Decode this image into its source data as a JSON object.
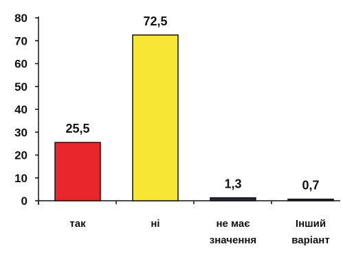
{
  "chart_data": {
    "type": "bar",
    "categories": [
      [
        "так"
      ],
      [
        "ні"
      ],
      [
        "не має",
        "значення"
      ],
      [
        "Інший",
        "варіант"
      ]
    ],
    "values": [
      25.5,
      72.5,
      1.3,
      0.7
    ],
    "value_labels": [
      "25,5",
      "72,5",
      "1,3",
      "0,7"
    ],
    "ylim": [
      0,
      80
    ],
    "yticks": [
      0,
      10,
      20,
      30,
      40,
      50,
      60,
      70,
      80
    ],
    "grid": false,
    "colors": {
      "bars": [
        "#e8262b",
        "#f7e634",
        "#2a2a3a",
        "#2a2a3a"
      ],
      "bar_stroke": "#111111",
      "axis": "#111111"
    }
  }
}
